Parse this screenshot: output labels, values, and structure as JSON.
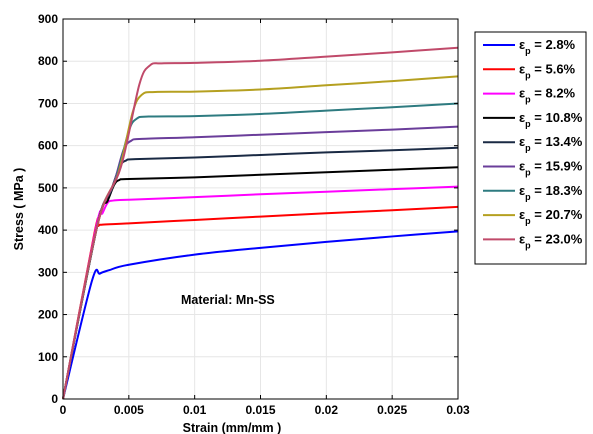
{
  "chart_data": {
    "type": "line",
    "title": "",
    "xlabel": "Strain (mm/mm )",
    "ylabel": "Stress ( MPa )",
    "xlim": [
      0,
      0.03
    ],
    "ylim": [
      0,
      900
    ],
    "xticks": [
      0,
      0.005,
      0.01,
      0.015,
      0.02,
      0.025,
      0.03
    ],
    "xtick_labels": [
      "0",
      "0.005",
      "0.01",
      "0.015",
      "0.02",
      "0.025",
      "0.03"
    ],
    "yticks": [
      0,
      100,
      200,
      300,
      400,
      500,
      600,
      700,
      800,
      900
    ],
    "ytick_labels": [
      "0",
      "100",
      "200",
      "300",
      "400",
      "500",
      "600",
      "700",
      "800",
      "900"
    ],
    "grid": true,
    "legend_position": "outside-right",
    "annotation": "Material: Mn-SS",
    "series": [
      {
        "label_symbol": "ε",
        "label_subscript": "p",
        "label_value": " = 2.8%",
        "color": "#0000ff",
        "x": [
          0,
          0.0022,
          0.0028,
          0.0035,
          0.005,
          0.01,
          0.015,
          0.02,
          0.025,
          0.03
        ],
        "y": [
          0,
          280,
          297,
          305,
          318,
          342,
          358,
          372,
          385,
          397
        ]
      },
      {
        "label_symbol": "ε",
        "label_subscript": "p",
        "label_value": " = 5.6%",
        "color": "#ff0000",
        "x": [
          0,
          0.0024,
          0.0027,
          0.003,
          0.005,
          0.01,
          0.015,
          0.02,
          0.025,
          0.03
        ],
        "y": [
          0,
          395,
          410,
          413,
          416,
          424,
          432,
          440,
          447,
          455
        ]
      },
      {
        "label_symbol": "ε",
        "label_subscript": "p",
        "label_value": " = 8.2%",
        "color": "#ff00ff",
        "x": [
          0,
          0.0025,
          0.003,
          0.0034,
          0.0038,
          0.005,
          0.01,
          0.015,
          0.02,
          0.025,
          0.03
        ],
        "y": [
          0,
          405,
          440,
          465,
          470,
          472,
          478,
          485,
          491,
          497,
          503
        ]
      },
      {
        "label_symbol": "ε",
        "label_subscript": "p",
        "label_value": " = 10.8%",
        "color": "#000000",
        "x": [
          0,
          0.0026,
          0.0034,
          0.0039,
          0.0043,
          0.005,
          0.01,
          0.015,
          0.02,
          0.025,
          0.03
        ],
        "y": [
          0,
          410,
          470,
          508,
          519,
          521,
          525,
          531,
          537,
          543,
          549
        ]
      },
      {
        "label_symbol": "ε",
        "label_subscript": "p",
        "label_value": " = 13.4%",
        "color": "#1a2a44",
        "x": [
          0,
          0.0026,
          0.0036,
          0.0043,
          0.0048,
          0.0055,
          0.01,
          0.015,
          0.02,
          0.025,
          0.03
        ],
        "y": [
          0,
          410,
          490,
          550,
          565,
          568,
          572,
          578,
          584,
          589,
          595
        ]
      },
      {
        "label_symbol": "ε",
        "label_subscript": "p",
        "label_value": " = 15.9%",
        "color": "#6a3d9a",
        "x": [
          0,
          0.0026,
          0.0038,
          0.0046,
          0.0052,
          0.006,
          0.01,
          0.015,
          0.02,
          0.025,
          0.03
        ],
        "y": [
          0,
          410,
          505,
          590,
          612,
          616,
          620,
          626,
          632,
          638,
          645
        ]
      },
      {
        "label_symbol": "ε",
        "label_subscript": "p",
        "label_value": " = 18.3%",
        "color": "#2e7b80",
        "x": [
          0,
          0.0026,
          0.004,
          0.005,
          0.0056,
          0.0065,
          0.01,
          0.015,
          0.02,
          0.025,
          0.03
        ],
        "y": [
          0,
          410,
          520,
          635,
          664,
          669,
          670,
          675,
          683,
          691,
          700
        ]
      },
      {
        "label_symbol": "ε",
        "label_subscript": "p",
        "label_value": " = 20.7%",
        "color": "#b5a020",
        "x": [
          0,
          0.0026,
          0.0042,
          0.0053,
          0.006,
          0.007,
          0.01,
          0.015,
          0.02,
          0.025,
          0.03
        ],
        "y": [
          0,
          410,
          535,
          680,
          721,
          727,
          728,
          733,
          743,
          753,
          764
        ]
      },
      {
        "label_symbol": "ε",
        "label_subscript": "p",
        "label_value": " = 23.0%",
        "color": "#c04a6a",
        "x": [
          0,
          0.0026,
          0.0044,
          0.0058,
          0.0066,
          0.0075,
          0.01,
          0.015,
          0.02,
          0.025,
          0.03
        ],
        "y": [
          0,
          410,
          550,
          745,
          790,
          795,
          796,
          801,
          811,
          821,
          832
        ]
      }
    ]
  }
}
